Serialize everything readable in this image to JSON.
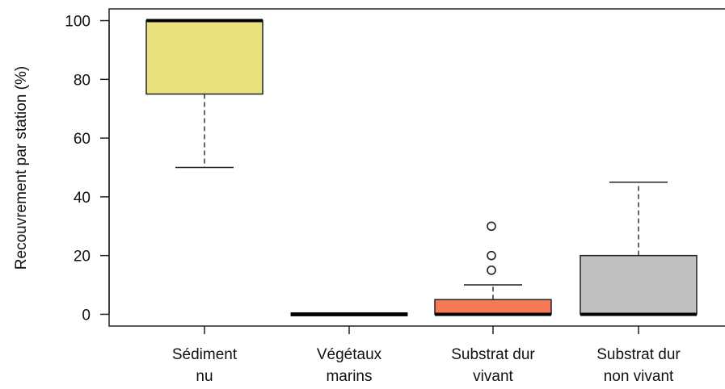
{
  "chart_data": {
    "type": "boxplot",
    "ylabel": "Recouvrement par station (%)",
    "xlabel": "",
    "ylim": [
      -4,
      104
    ],
    "yticks": [
      0,
      20,
      40,
      60,
      80,
      100
    ],
    "grid": false,
    "categories": [
      [
        "Sédiment",
        "nu"
      ],
      [
        "Végétaux",
        "marins"
      ],
      [
        "Substrat dur",
        "vivant"
      ],
      [
        "Substrat dur",
        "non vivant"
      ]
    ],
    "boxes": [
      {
        "lower_whisker": 50,
        "q1": 75,
        "median": 100,
        "q3": 100,
        "upper_whisker": 100,
        "outliers": [],
        "color": "#e8e27e"
      },
      {
        "lower_whisker": 0,
        "q1": 0,
        "median": 0,
        "q3": 0,
        "upper_whisker": 0,
        "outliers": [],
        "color": "#f0e890"
      },
      {
        "lower_whisker": 0,
        "q1": 0,
        "median": 0,
        "q3": 5,
        "upper_whisker": 10,
        "outliers": [
          15,
          20,
          30
        ],
        "color": "#f47a56"
      },
      {
        "lower_whisker": 0,
        "q1": 0,
        "median": 0,
        "q3": 20,
        "upper_whisker": 45,
        "outliers": [],
        "color": "#c0c0c0"
      }
    ]
  }
}
